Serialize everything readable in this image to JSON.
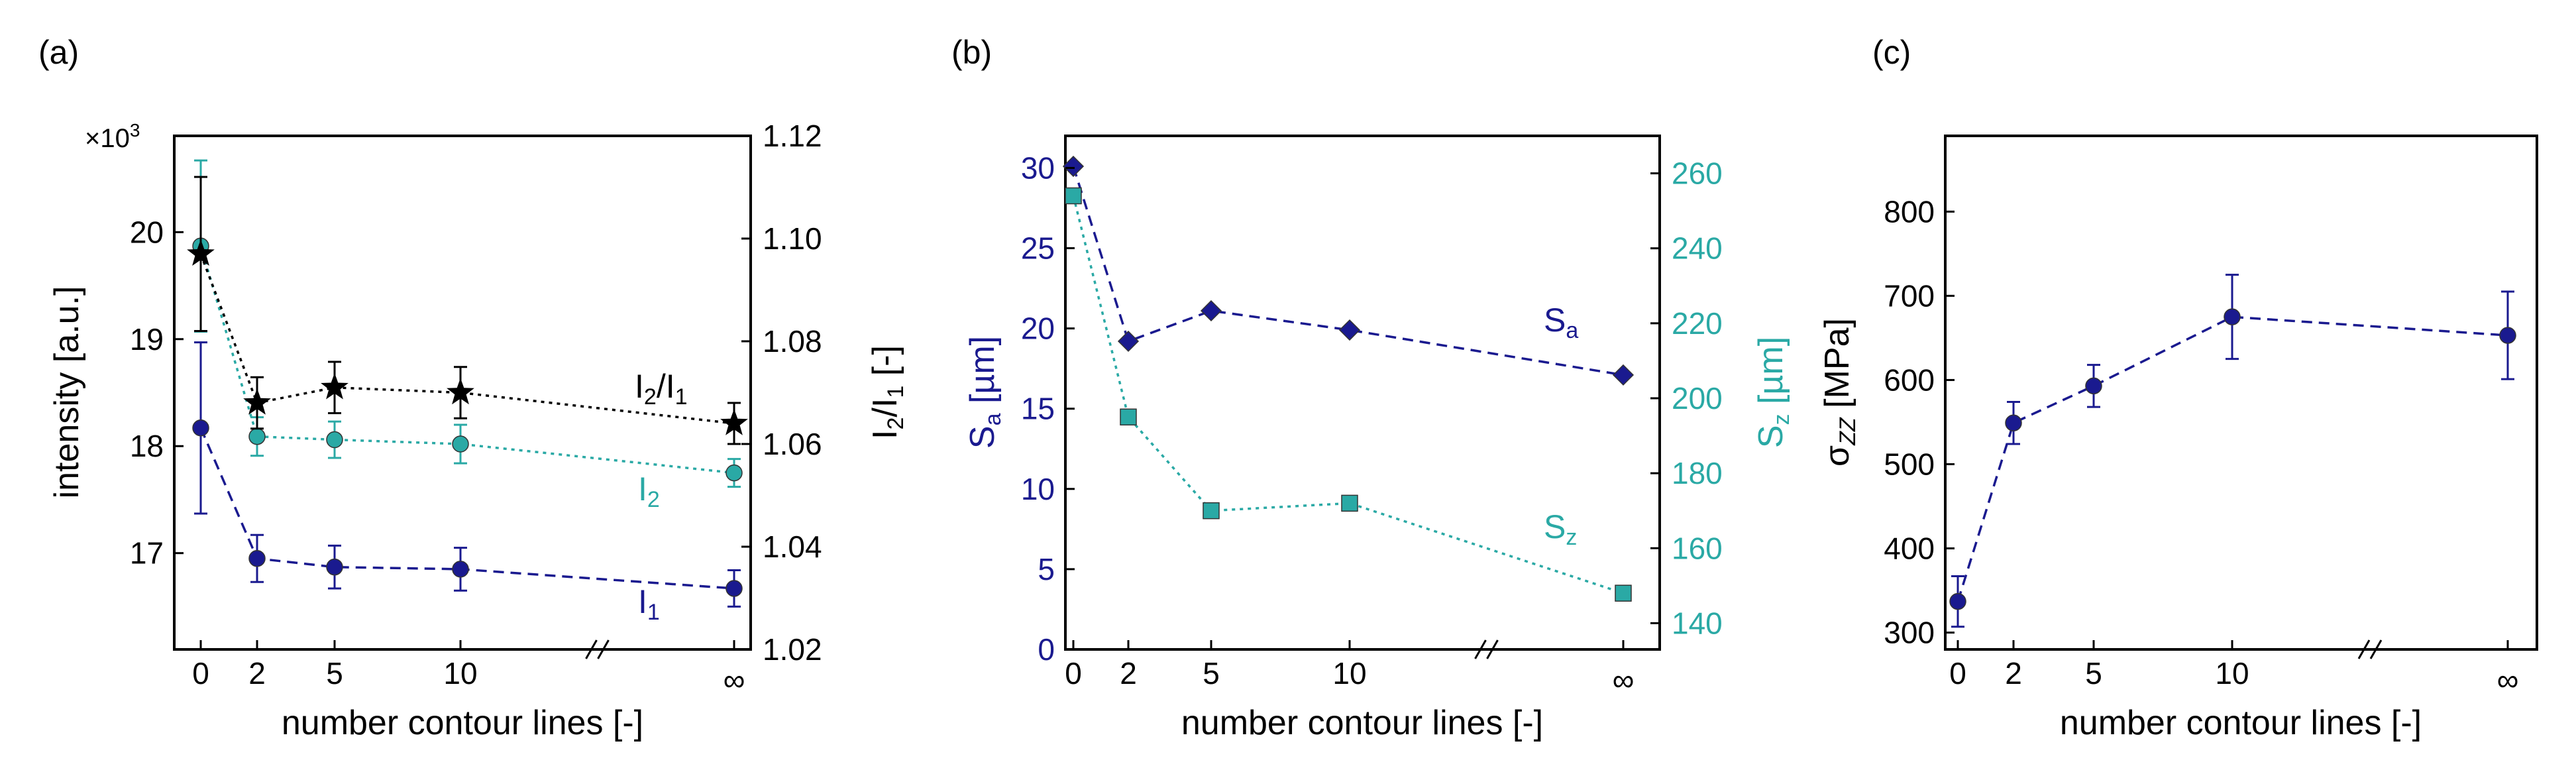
{
  "colors": {
    "navy": "#1a1a8f",
    "teal": "#2aa9a5",
    "black": "#000000",
    "frame": "#000000"
  },
  "chart_data": [
    {
      "panel": "(a)",
      "type": "line",
      "x_tick_labels": [
        "0",
        "2",
        "5",
        "10",
        "∞"
      ],
      "x_positions": [
        0,
        2,
        5,
        10,
        15
      ],
      "xlabel": "number contour lines [-]",
      "ylabel": "intensity [a.u.]",
      "y_multiplier": "×10",
      "y_multiplier_exp": "3",
      "ylim": [
        16.1,
        20.9
      ],
      "y_ticks": [
        "17",
        "18",
        "19",
        "20"
      ],
      "y2label": "I2/I1 [-]",
      "y2lim": [
        1.02,
        1.12
      ],
      "y2_ticks": [
        "1.02",
        "1.04",
        "1.06",
        "1.08",
        "1.10",
        "1.12"
      ],
      "series": [
        {
          "name": "I1",
          "label_main": "I",
          "label_sub": "1",
          "axis": "left",
          "color": "navy",
          "marker": "circle",
          "linestyle": "dashed",
          "values": [
            18.17,
            16.95,
            16.87,
            16.85,
            16.67
          ],
          "errors": [
            0.8,
            0.22,
            0.2,
            0.2,
            0.17
          ]
        },
        {
          "name": "I2",
          "label_main": "I",
          "label_sub": "2",
          "axis": "left",
          "color": "teal",
          "marker": "circle",
          "linestyle": "dotted",
          "values": [
            19.87,
            18.09,
            18.06,
            18.02,
            17.75
          ],
          "errors": [
            0.8,
            0.18,
            0.17,
            0.18,
            0.13
          ]
        },
        {
          "name": "I2/I1",
          "label_main": "I",
          "label_sub": "2",
          "label_mid": "/I",
          "label_sub2": "1",
          "axis": "right",
          "color": "black",
          "marker": "star",
          "linestyle": "dotted",
          "values": [
            1.097,
            1.068,
            1.071,
            1.07,
            1.064
          ],
          "errors": [
            0.015,
            0.005,
            0.005,
            0.005,
            0.004
          ]
        }
      ]
    },
    {
      "panel": "(b)",
      "type": "line",
      "x_tick_labels": [
        "0",
        "2",
        "5",
        "10",
        "∞"
      ],
      "x_positions": [
        0,
        2,
        5,
        10,
        15
      ],
      "xlabel": "number contour lines [-]",
      "ylabel": "Sa [µm]",
      "ylim": [
        0,
        32
      ],
      "y_ticks": [
        "0",
        "5",
        "10",
        "15",
        "20",
        "25",
        "30"
      ],
      "y2label": "Sz [µm]",
      "y2lim": [
        133,
        270
      ],
      "y2_ticks": [
        "140",
        "160",
        "180",
        "200",
        "220",
        "240",
        "260"
      ],
      "series": [
        {
          "name": "Sa",
          "label_main": "S",
          "label_sub": "a",
          "axis": "left",
          "color": "navy",
          "marker": "diamond",
          "linestyle": "dashed",
          "values": [
            30.1,
            19.2,
            21.1,
            19.9,
            17.1
          ]
        },
        {
          "name": "Sz",
          "label_main": "S",
          "label_sub": "z",
          "axis": "right",
          "color": "teal",
          "marker": "square",
          "linestyle": "dotted",
          "values": [
            254,
            195,
            170,
            172,
            148
          ]
        }
      ]
    },
    {
      "panel": "(c)",
      "type": "line",
      "x_tick_labels": [
        "0",
        "2",
        "5",
        "10",
        "∞"
      ],
      "x_positions": [
        0,
        2,
        5,
        10,
        15
      ],
      "xlabel": "number contour lines [-]",
      "ylabel_main": "σ",
      "ylabel_sub": "ZZ",
      "ylabel_rest": " [MPa]",
      "ylim": [
        280,
        890
      ],
      "y_ticks": [
        "300",
        "400",
        "500",
        "600",
        "700",
        "800"
      ],
      "series": [
        {
          "name": "σZZ",
          "axis": "left",
          "color": "navy",
          "marker": "circle",
          "linestyle": "dashed",
          "values": [
            337,
            549,
            593,
            675,
            653
          ],
          "errors": [
            30,
            25,
            25,
            50,
            52
          ]
        }
      ]
    }
  ]
}
